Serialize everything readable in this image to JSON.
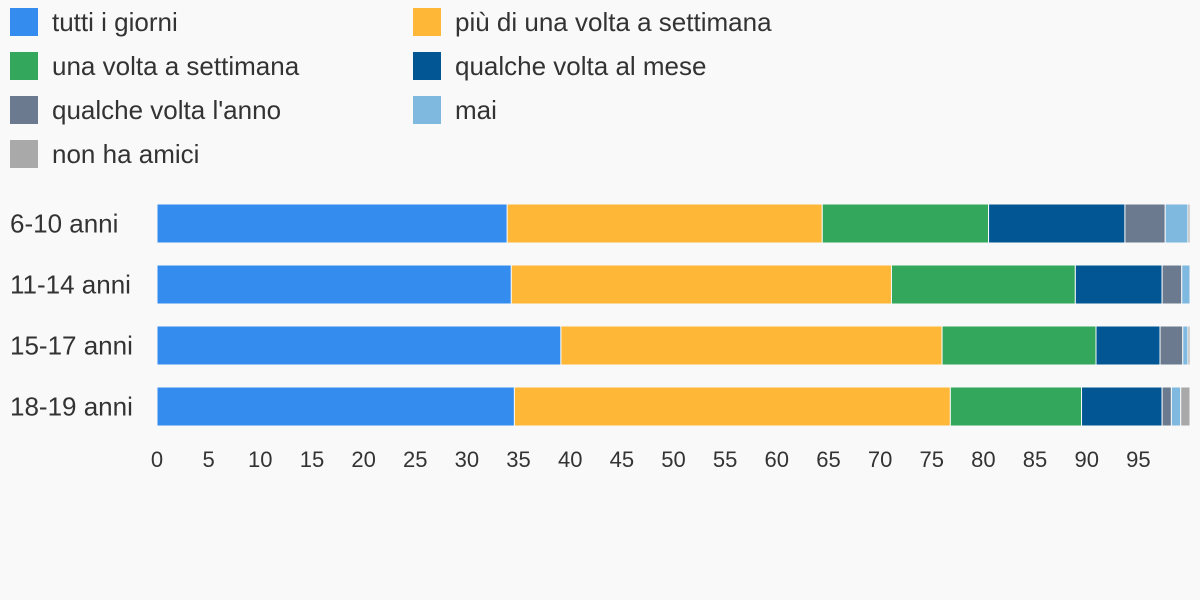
{
  "chart_data": {
    "type": "bar",
    "orientation": "horizontal",
    "stacked": true,
    "title": "",
    "xlabel": "",
    "ylabel": "",
    "xlim": [
      0,
      100
    ],
    "x_ticks": [
      0,
      5,
      10,
      15,
      20,
      25,
      30,
      35,
      40,
      45,
      50,
      55,
      60,
      65,
      70,
      75,
      80,
      85,
      90,
      95
    ],
    "grid": false,
    "legend_position": "top",
    "categories": [
      "6-10 anni",
      "11-14 anni",
      "15-17 anni",
      "18-19 anni"
    ],
    "series": [
      {
        "name": "tutti i giorni",
        "color": "#338cee",
        "values": [
          33.9,
          34.3,
          39.1,
          34.6
        ]
      },
      {
        "name": "più di una volta a settimana",
        "color": "#feb736",
        "values": [
          30.5,
          36.8,
          36.9,
          42.2
        ]
      },
      {
        "name": "una volta a settimana",
        "color": "#33a75b",
        "values": [
          16.1,
          17.8,
          14.9,
          12.7
        ]
      },
      {
        "name": "qualche volta al mese",
        "color": "#015693",
        "values": [
          13.2,
          8.4,
          6.2,
          7.8
        ]
      },
      {
        "name": "qualche volta l'anno",
        "color": "#6b7a8f",
        "values": [
          3.9,
          1.9,
          2.2,
          0.9
        ]
      },
      {
        "name": "mai",
        "color": "#7fb9e0",
        "values": [
          2.2,
          0.8,
          0.5,
          0.9
        ]
      },
      {
        "name": "non ha amici",
        "color": "#a9a9a9",
        "values": [
          0.2,
          0.0,
          0.2,
          0.9
        ]
      }
    ]
  }
}
